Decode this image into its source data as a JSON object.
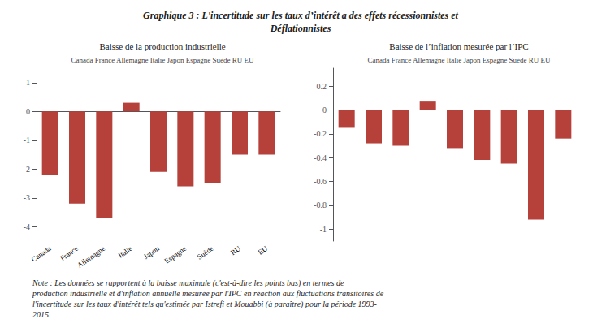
{
  "title": "Graphique 3 : L'incertitude sur les taux d’intérêt a des effets récessionnistes et\nDéflationnistes",
  "note": "Note : Les données se rapportent à la baisse maximale (c'est-à-dire les points bas) en termes de\nproduction industrielle et d'inflation annuelle mesurée par l'IPC en réaction aux fluctuations transitoires de\nl'incertitude sur les taux d'intérêt tels qu'estimée par Istrefi et Mouabbi (à paraître) pour la période 1993-\n2015.",
  "chart_data": [
    {
      "type": "bar",
      "title": "Baisse de la production industrielle",
      "subtitle": "Canada France Allemagne Italie Japon Espagne Suède RU EU",
      "categories": [
        "Canada",
        "France",
        "Allemagne",
        "Italie",
        "Japon",
        "Espagne",
        "Suède",
        "RU",
        "EU"
      ],
      "values": [
        -2.2,
        -3.2,
        -3.7,
        0.3,
        -2.1,
        -2.6,
        -2.5,
        -1.5,
        -1.5
      ],
      "color": "#b5413a",
      "ylim": [
        -4.5,
        1.5
      ],
      "yticks": [
        -4,
        -3,
        -2,
        -1,
        0,
        1
      ],
      "grid": false
    },
    {
      "type": "bar",
      "title": "Baisse de l’inflation mesurée par l’IPC",
      "subtitle": "Canada France Allemagne Italie Japon Espagne Suède RU EU",
      "categories": [
        "Canada",
        "France",
        "Allemagne",
        "Italie",
        "Japon",
        "Espagne",
        "Suède",
        "RU",
        "EU"
      ],
      "values": [
        -0.15,
        -0.28,
        -0.3,
        0.07,
        -0.32,
        -0.42,
        -0.45,
        -0.92,
        -0.24
      ],
      "color": "#b5413a",
      "ylim": [
        -1.1,
        0.35
      ],
      "yticks": [
        -1,
        -0.8,
        -0.6,
        -0.4,
        -0.2,
        0,
        0.2
      ],
      "grid": false,
      "tick_labels": "y"
    }
  ]
}
